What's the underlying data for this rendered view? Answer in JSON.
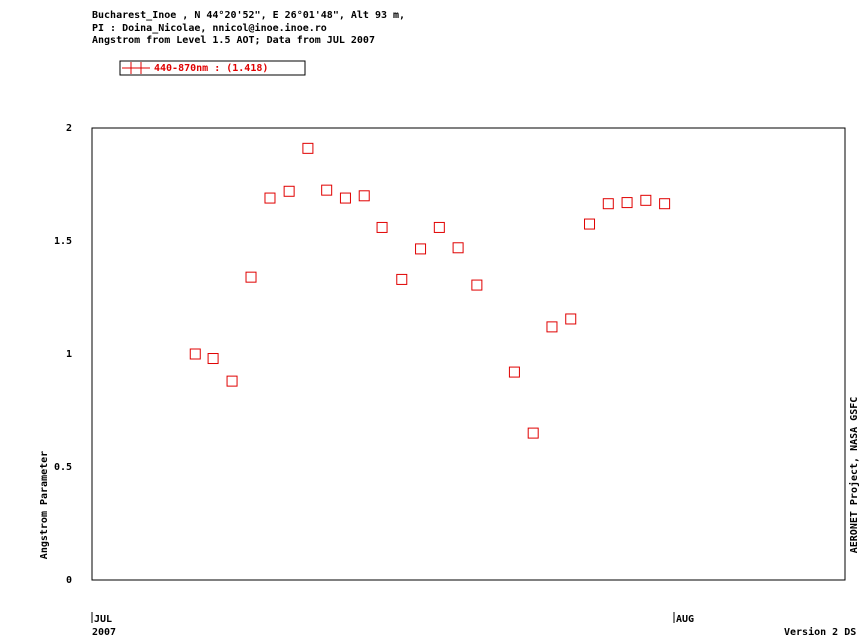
{
  "chart_data": {
    "type": "scatter",
    "header": [
      "Bucharest_Inoe , N 44°20'52\", E 26°01'48\", Alt 93 m,",
      "PI : Doina_Nicolae, nnicol@inoe.inoe.ro",
      "Angstrom from Level 1.5 AOT; Data from JUL 2007"
    ],
    "ylabel": "Angstrom Parameter",
    "right_label": "AERONET Project, NASA GSFC",
    "footer": "Version 2 DS",
    "x_year_label": "2007",
    "xlim": [
      0,
      31
    ],
    "xticks": [
      {
        "value": 0,
        "label": "JUL"
      },
      {
        "value": 31,
        "label": "AUG"
      }
    ],
    "ylim": [
      0,
      2
    ],
    "yticks": [
      0,
      0.5,
      1,
      1.5,
      2
    ],
    "series": [
      {
        "name": "440-870nm  : (1.418)",
        "color": "#e00000",
        "x": [
          5.5,
          6.45,
          7.46,
          8.47,
          9.48,
          10.5,
          11.5,
          12.5,
          13.5,
          14.5,
          15.45,
          16.5,
          17.5,
          18.5,
          19.5,
          20.5,
          22.5,
          23.5,
          24.5,
          25.5,
          26.5,
          27.5,
          28.5,
          29.5,
          30.5
        ],
        "values": [
          1.0,
          0.98,
          0.88,
          1.34,
          1.69,
          1.72,
          1.91,
          1.725,
          1.69,
          1.7,
          1.56,
          1.33,
          1.465,
          1.56,
          1.47,
          1.305,
          0.92,
          0.65,
          1.12,
          1.155,
          1.575,
          1.665,
          1.67,
          1.68,
          1.665
        ]
      }
    ]
  }
}
